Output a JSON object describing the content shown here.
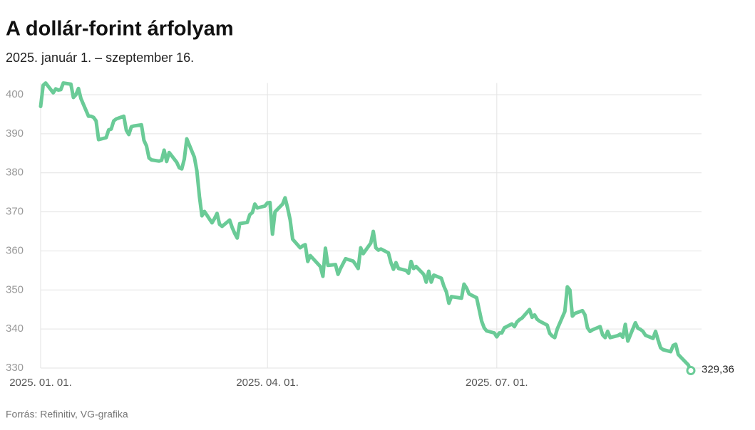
{
  "chart_data": {
    "type": "line",
    "title": "A dollár-forint árfolyam",
    "subtitle": "2025. január 1. – szeptember 16.",
    "source": "Forrás: Refinitiv, VG-grafika",
    "x": [
      "2025-01-01",
      "2025-01-02",
      "2025-01-03",
      "2025-01-06",
      "2025-01-07",
      "2025-01-08",
      "2025-01-09",
      "2025-01-10",
      "2025-01-13",
      "2025-01-14",
      "2025-01-15",
      "2025-01-16",
      "2025-01-17",
      "2025-01-20",
      "2025-01-21",
      "2025-01-22",
      "2025-01-23",
      "2025-01-24",
      "2025-01-27",
      "2025-01-28",
      "2025-01-29",
      "2025-01-30",
      "2025-01-31",
      "2025-02-03",
      "2025-02-04",
      "2025-02-05",
      "2025-02-06",
      "2025-02-07",
      "2025-02-10",
      "2025-02-11",
      "2025-02-12",
      "2025-02-13",
      "2025-02-14",
      "2025-02-17",
      "2025-02-18",
      "2025-02-19",
      "2025-02-20",
      "2025-02-21",
      "2025-02-24",
      "2025-02-25",
      "2025-02-26",
      "2025-02-27",
      "2025-02-28",
      "2025-03-03",
      "2025-03-04",
      "2025-03-05",
      "2025-03-06",
      "2025-03-07",
      "2025-03-10",
      "2025-03-11",
      "2025-03-12",
      "2025-03-13",
      "2025-03-14",
      "2025-03-17",
      "2025-03-18",
      "2025-03-19",
      "2025-03-20",
      "2025-03-21",
      "2025-03-24",
      "2025-03-25",
      "2025-03-26",
      "2025-03-27",
      "2025-03-28",
      "2025-03-31",
      "2025-04-01",
      "2025-04-02",
      "2025-04-03",
      "2025-04-04",
      "2025-04-07",
      "2025-04-08",
      "2025-04-09",
      "2025-04-10",
      "2025-04-11",
      "2025-04-14",
      "2025-04-15",
      "2025-04-16",
      "2025-04-17",
      "2025-04-18",
      "2025-04-22",
      "2025-04-23",
      "2025-04-24",
      "2025-04-25",
      "2025-04-28",
      "2025-04-29",
      "2025-04-30",
      "2025-05-02",
      "2025-05-05",
      "2025-05-06",
      "2025-05-07",
      "2025-05-08",
      "2025-05-09",
      "2025-05-12",
      "2025-05-13",
      "2025-05-14",
      "2025-05-15",
      "2025-05-16",
      "2025-05-19",
      "2025-05-20",
      "2025-05-21",
      "2025-05-22",
      "2025-05-23",
      "2025-05-26",
      "2025-05-27",
      "2025-05-28",
      "2025-05-29",
      "2025-05-30",
      "2025-06-02",
      "2025-06-03",
      "2025-06-04",
      "2025-06-05",
      "2025-06-06",
      "2025-06-09",
      "2025-06-10",
      "2025-06-11",
      "2025-06-12",
      "2025-06-13",
      "2025-06-16",
      "2025-06-17",
      "2025-06-18",
      "2025-06-19",
      "2025-06-20",
      "2025-06-23",
      "2025-06-24",
      "2025-06-25",
      "2025-06-26",
      "2025-06-27",
      "2025-06-30",
      "2025-07-01",
      "2025-07-02",
      "2025-07-03",
      "2025-07-04",
      "2025-07-07",
      "2025-07-08",
      "2025-07-09",
      "2025-07-10",
      "2025-07-11",
      "2025-07-14",
      "2025-07-15",
      "2025-07-16",
      "2025-07-17",
      "2025-07-18",
      "2025-07-21",
      "2025-07-22",
      "2025-07-23",
      "2025-07-24",
      "2025-07-25",
      "2025-07-28",
      "2025-07-29",
      "2025-07-30",
      "2025-07-31",
      "2025-08-01",
      "2025-08-04",
      "2025-08-05",
      "2025-08-06",
      "2025-08-07",
      "2025-08-08",
      "2025-08-11",
      "2025-08-12",
      "2025-08-13",
      "2025-08-14",
      "2025-08-15",
      "2025-08-18",
      "2025-08-19",
      "2025-08-20",
      "2025-08-21",
      "2025-08-22",
      "2025-08-25",
      "2025-08-26",
      "2025-08-27",
      "2025-08-28",
      "2025-08-29",
      "2025-09-01",
      "2025-09-02",
      "2025-09-03",
      "2025-09-04",
      "2025-09-05",
      "2025-09-08",
      "2025-09-09",
      "2025-09-10",
      "2025-09-11",
      "2025-09-12",
      "2025-09-15",
      "2025-09-16"
    ],
    "series": [
      {
        "name": "USD/HUF",
        "color": "#6acb97",
        "values": [
          397,
          402.4,
          403,
          400.5,
          401.5,
          401.2,
          401.3,
          403,
          402.7,
          399.3,
          400,
          401.6,
          399,
          394.5,
          394.5,
          394.2,
          393.3,
          388.5,
          389,
          391,
          391.2,
          393.3,
          393.8,
          394.5,
          390.9,
          389.8,
          391.8,
          392,
          392.3,
          388.3,
          386.9,
          383.8,
          383.3,
          383,
          383.2,
          385.8,
          382.9,
          385.2,
          382.7,
          381.3,
          381,
          383.5,
          388.7,
          384,
          380.5,
          374,
          369,
          370.1,
          367.2,
          368.3,
          369.6,
          366.8,
          366.3,
          367.9,
          366,
          364.5,
          363.3,
          367,
          367.3,
          369.3,
          369.8,
          372,
          371,
          371.5,
          372.3,
          372.4,
          364.3,
          370,
          372,
          373.6,
          371,
          368,
          363,
          360.8,
          361.3,
          361.6,
          357.3,
          358.8,
          356,
          353.5,
          360.7,
          356.3,
          356.5,
          354,
          355.5,
          358,
          357.4,
          356.5,
          355.5,
          360.8,
          359.3,
          362,
          365,
          360.8,
          360.2,
          360.5,
          359.5,
          357,
          355.3,
          357,
          355.5,
          355,
          354.3,
          357.3,
          355.5,
          356,
          354,
          352,
          354.8,
          352,
          353.8,
          353,
          351,
          349.5,
          346.6,
          348.3,
          348,
          347.9,
          351.5,
          350.5,
          349,
          348,
          345,
          342,
          340.3,
          339.5,
          339,
          338,
          339,
          339,
          340.3,
          341.3,
          340.6,
          341.8,
          342.4,
          342.8,
          345,
          343,
          343.6,
          342.5,
          342,
          341,
          338.9,
          338.2,
          337.8,
          340,
          344.5,
          350.8,
          350,
          343.3,
          344,
          344.7,
          343.6,
          340.3,
          339.4,
          339.8,
          340.6,
          338.5,
          337.8,
          339.4,
          337.8,
          338.3,
          338.7,
          337.9,
          341.2,
          336.9,
          341.6,
          340.2,
          339.9,
          339.4,
          338.4,
          337.6,
          339.4,
          337.2,
          335.2,
          334.7,
          334.2,
          335.8,
          336.1,
          333.5,
          332.8,
          330.8,
          329.36
        ]
      }
    ],
    "last_value_label": "329,36",
    "xlim": [
      "2025-01-01",
      "2025-09-16"
    ],
    "xticks": [
      {
        "value": "2025-01-01",
        "label": "2025. 01. 01."
      },
      {
        "value": "2025-04-01",
        "label": "2025. 04. 01."
      },
      {
        "value": "2025-07-01",
        "label": "2025. 07. 01."
      }
    ],
    "ylim": [
      330,
      403
    ],
    "yticks": [
      330,
      340,
      350,
      360,
      370,
      380,
      390,
      400
    ],
    "grid": true
  }
}
